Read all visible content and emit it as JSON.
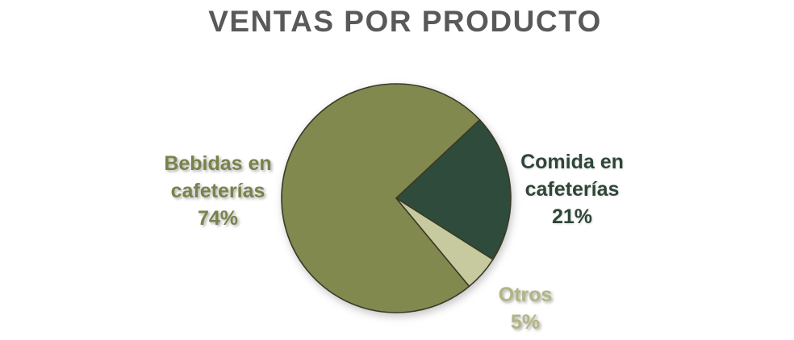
{
  "title": "VENTAS POR PRODUCTO",
  "title_color": "#595959",
  "chart_data": {
    "type": "pie",
    "title": "VENTAS POR PRODUCTO",
    "labels": [
      "Bebidas en cafeterías",
      "Comida en cafeterías",
      "Otros"
    ],
    "values": [
      74,
      21,
      5
    ],
    "unit": "%",
    "colors": [
      "#81894F",
      "#2E4B3B",
      "#C7C99E"
    ],
    "stroke_color": "#3B3A26",
    "start_angle_deg": 140.4,
    "direction": "clockwise",
    "legend_position": "none",
    "data_labels": "outside"
  },
  "labels": {
    "bebidas": {
      "line1": "Bebidas en",
      "line2": "cafeterías",
      "pct": "74%",
      "color": "#7A8249"
    },
    "comida": {
      "line1": "Comida en",
      "line2": "cafeterías",
      "pct": "21%",
      "color": "#2F4638"
    },
    "otros": {
      "line1": "Otros",
      "pct": "5%",
      "color": "#B2B583"
    }
  }
}
